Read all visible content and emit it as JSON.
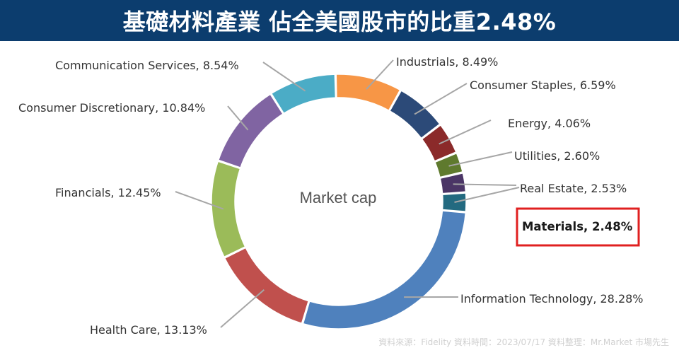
{
  "header": {
    "title": "基礎材料產業 佔全美國股市的比重2.48%"
  },
  "source": "資料來源：Fidelity  資料時間：2023/07/17   資料整理：Mr.Market 市場先生",
  "chart_data": {
    "type": "pie",
    "donut": true,
    "center_label": "Market cap",
    "start_category": "Industrials",
    "direction": "clockwise",
    "highlight": "Materials",
    "highlight_color": "#e02020",
    "slices": [
      {
        "category": "Industrials",
        "value": 8.49,
        "label": "Industrials, 8.49%",
        "color": "#f79646"
      },
      {
        "category": "Consumer Staples",
        "value": 6.59,
        "label": "Consumer Staples, 6.59%",
        "color": "#2c4a78"
      },
      {
        "category": "Energy",
        "value": 4.06,
        "label": "Energy, 4.06%",
        "color": "#8b2a2a"
      },
      {
        "category": "Utilities",
        "value": 2.6,
        "label": "Utilities, 2.60%",
        "color": "#5f7a2e"
      },
      {
        "category": "Real Estate",
        "value": 2.53,
        "label": "Real Estate, 2.53%",
        "color": "#4b3566"
      },
      {
        "category": "Materials",
        "value": 2.48,
        "label": "Materials, 2.48%",
        "color": "#236a80"
      },
      {
        "category": "Information Technology",
        "value": 28.28,
        "label": "Information Technology, 28.28%",
        "color": "#4f81bd"
      },
      {
        "category": "Health Care",
        "value": 13.13,
        "label": "Health Care, 13.13%",
        "color": "#c0504d"
      },
      {
        "category": "Financials",
        "value": 12.45,
        "label": "Financials, 12.45%",
        "color": "#9bbb59"
      },
      {
        "category": "Consumer Discretionary",
        "value": 10.84,
        "label": "Consumer Discretionary, 10.84%",
        "color": "#8064a2"
      },
      {
        "category": "Communication Services",
        "value": 8.54,
        "label": "Communication Services, 8.54%",
        "color": "#4bacc6"
      }
    ]
  }
}
